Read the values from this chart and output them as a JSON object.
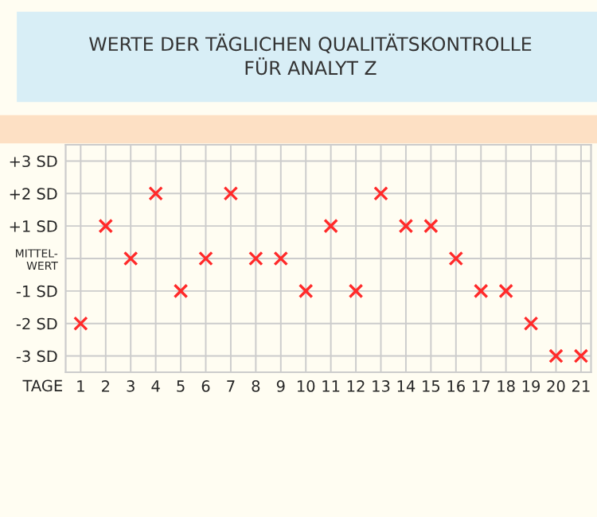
{
  "chart_data": {
    "type": "scatter",
    "title": "WERTE DER TÄGLICHEN QUALITÄTSKONTROLLE\nFÜR ANALYT Z",
    "xlabel": "TAGE",
    "x": [
      1,
      2,
      3,
      4,
      5,
      6,
      7,
      8,
      9,
      10,
      11,
      12,
      13,
      14,
      15,
      16,
      17,
      18,
      19,
      20,
      21
    ],
    "series": [
      {
        "color": "#ff2a2a",
        "values": [
          -2,
          1,
          0,
          2,
          -1,
          0,
          2,
          0,
          0,
          -1,
          1,
          -1,
          2,
          1,
          1,
          0,
          -1,
          -1,
          -2,
          -3,
          -3
        ]
      }
    ],
    "xlim": [
      0.4,
      21.4
    ],
    "xticks": [
      1,
      2,
      3,
      4,
      5,
      6,
      7,
      8,
      9,
      10,
      11,
      12,
      13,
      14,
      15,
      16,
      17,
      18,
      19,
      20,
      21
    ],
    "ylim": [
      -3.5,
      3.5
    ],
    "yticks": [
      {
        "value": 3,
        "label": "+3 SD"
      },
      {
        "value": 2,
        "label": "+2 SD"
      },
      {
        "value": 1,
        "label": "+1 SD"
      },
      {
        "value": 0,
        "label": "MITTEL-\nWERT"
      },
      {
        "value": -1,
        "label": "-1 SD"
      },
      {
        "value": -2,
        "label": "-2 SD"
      },
      {
        "value": -3,
        "label": "-3 SD"
      }
    ],
    "grid": true,
    "marker": "cross",
    "legend": false
  }
}
